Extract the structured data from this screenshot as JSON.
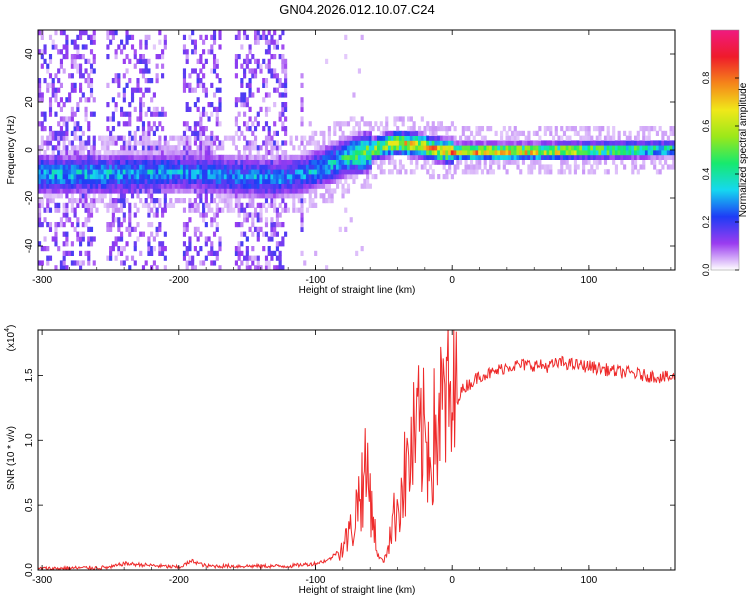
{
  "title": "GN04.2026.012.10.07.C24",
  "colorbar": {
    "label": "Normalized spectral amplitude",
    "ticks": [
      "0.0",
      "0.2",
      "0.4",
      "0.6",
      "0.8"
    ],
    "tick_values": [
      0.0,
      0.2,
      0.4,
      0.6,
      0.8
    ],
    "range": [
      0,
      1
    ],
    "colors": [
      "#ffffff",
      "#9a3cf0",
      "#1e3cf5",
      "#15d8f0",
      "#17e96e",
      "#9be81a",
      "#f0e81a",
      "#f5851a",
      "#ef1b2b",
      "#f01a80"
    ]
  },
  "chart_data": [
    {
      "type": "heatmap",
      "name": "spectrogram",
      "xlabel": "Height of straight line (km)",
      "ylabel": "Frequency (Hz)",
      "xlim": [
        -303,
        163
      ],
      "ylim": [
        -50,
        50
      ],
      "xticks": [
        "-300",
        "-200",
        "-100",
        "0",
        "100"
      ],
      "xtick_values": [
        -300,
        -200,
        -100,
        0,
        100
      ],
      "yticks": [
        "-40",
        "-20",
        "0",
        "20",
        "40"
      ],
      "ytick_values": [
        -40,
        -20,
        0,
        20,
        40
      ],
      "ridge": {
        "x": [
          -255,
          -200,
          -130,
          -110,
          -95,
          -80,
          -65,
          -50,
          -40,
          -25,
          -10,
          0,
          50,
          163
        ],
        "freq": [
          -10,
          -9,
          -12,
          -10,
          -7,
          -3,
          -1,
          2,
          3,
          2,
          0,
          -0.5,
          -0.5,
          0.5
        ],
        "peak_amplitude": [
          0.4,
          0.35,
          0.35,
          0.35,
          0.4,
          0.45,
          0.6,
          0.7,
          0.75,
          0.8,
          0.85,
          0.9,
          0.9,
          0.5
        ]
      }
    },
    {
      "type": "line",
      "name": "snr",
      "xlabel": "Height of straight line (km)",
      "ylabel": "SNR (10 * v/v)",
      "y_scale_label": "(x10",
      "y_scale_exponent": "4",
      "xlim": [
        -303,
        163
      ],
      "ylim": [
        0,
        1.85
      ],
      "xticks": [
        "-300",
        "-200",
        "-100",
        "0",
        "100"
      ],
      "xtick_values": [
        -300,
        -200,
        -100,
        0,
        100
      ],
      "yticks": [
        "0.0",
        "0.5",
        "1.0",
        "1.5"
      ],
      "ytick_values": [
        0.0,
        0.5,
        1.0,
        1.5
      ],
      "series_color": "#ee2a2a",
      "x": [
        -303,
        -250,
        -240,
        -200,
        -190,
        -180,
        -120,
        -100,
        -90,
        -80,
        -72,
        -68,
        -62,
        -58,
        -55,
        -50,
        -45,
        -40,
        -35,
        -30,
        -25,
        -20,
        -15,
        -10,
        -5,
        0,
        5,
        10,
        15,
        20,
        30,
        40,
        50,
        60,
        70,
        80,
        90,
        100,
        110,
        120,
        130,
        140,
        150,
        163
      ],
      "y": [
        0.01,
        0.02,
        0.05,
        0.02,
        0.07,
        0.03,
        0.03,
        0.05,
        0.08,
        0.18,
        0.35,
        0.6,
        0.75,
        0.45,
        0.12,
        0.06,
        0.3,
        0.5,
        0.7,
        0.9,
        1.05,
        1.0,
        0.95,
        1.15,
        1.3,
        1.2,
        1.35,
        1.42,
        1.45,
        1.5,
        1.52,
        1.57,
        1.58,
        1.58,
        1.57,
        1.6,
        1.58,
        1.57,
        1.55,
        1.53,
        1.52,
        1.5,
        1.49,
        1.48
      ]
    }
  ]
}
